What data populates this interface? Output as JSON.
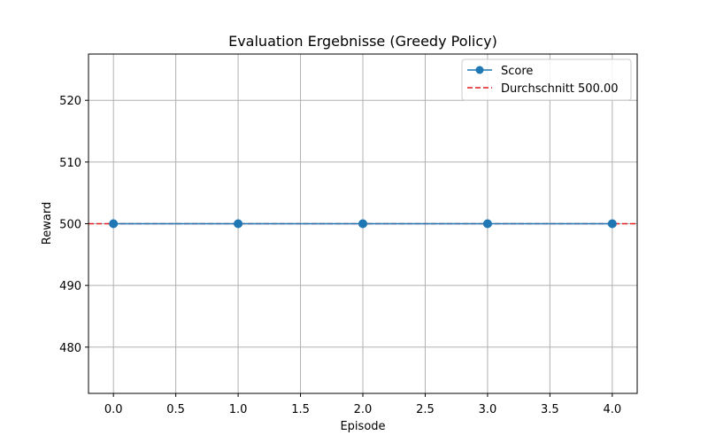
{
  "chart_data": {
    "type": "line",
    "title": "Evaluation Ergebnisse (Greedy Policy)",
    "xlabel": "Episode",
    "ylabel": "Reward",
    "xlim": [
      -0.2,
      4.2
    ],
    "ylim": [
      472.5,
      527.5
    ],
    "xticks": [
      "0.0",
      "0.5",
      "1.0",
      "1.5",
      "2.0",
      "2.5",
      "3.0",
      "3.5",
      "4.0"
    ],
    "yticks": [
      "480",
      "490",
      "500",
      "510",
      "520"
    ],
    "grid": true,
    "legend_position": "top-right",
    "series": [
      {
        "name": "Score",
        "x": [
          0,
          1,
          2,
          3,
          4
        ],
        "values": [
          500,
          500,
          500,
          500,
          500
        ],
        "color": "#1f77b4",
        "marker": "circle"
      }
    ],
    "reference_lines": [
      {
        "name": "Durchschnitt 500.00",
        "y": 500,
        "color": "#e41a1c",
        "style": "dashed"
      }
    ]
  }
}
